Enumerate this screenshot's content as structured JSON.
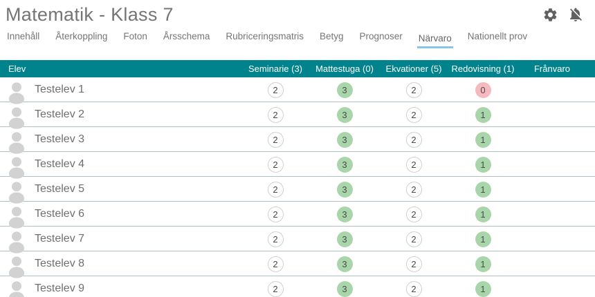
{
  "app": {
    "title": "Matematik - Klass 7"
  },
  "toolbar": {
    "icons": [
      {
        "id": "settings",
        "name": "settings-icon"
      },
      {
        "id": "notifications_off",
        "name": "notifications-off-icon"
      }
    ]
  },
  "tabs": [
    {
      "id": "innehall",
      "label": "Innehåll",
      "active": false
    },
    {
      "id": "aterkoppling",
      "label": "Återkoppling",
      "active": false
    },
    {
      "id": "foton",
      "label": "Foton",
      "active": false
    },
    {
      "id": "arsschema",
      "label": "Årsschema",
      "active": false
    },
    {
      "id": "rubriceringsmatris",
      "label": "Rubriceringsmatris",
      "active": false
    },
    {
      "id": "betyg",
      "label": "Betyg",
      "active": false
    },
    {
      "id": "prognoser",
      "label": "Prognoser",
      "active": false
    },
    {
      "id": "narvaro",
      "label": "Närvaro",
      "active": true
    },
    {
      "id": "nationellt-prov",
      "label": "Nationellt prov",
      "active": false
    }
  ],
  "table": {
    "columns": [
      {
        "id": "elev",
        "label": "Elev"
      },
      {
        "id": "seminarie",
        "label": "Seminarie (3)"
      },
      {
        "id": "mattestuga",
        "label": "Mattestuga (0)"
      },
      {
        "id": "ekvationer",
        "label": "Ekvationer (5)"
      },
      {
        "id": "redovisning",
        "label": "Redovisning (1)"
      },
      {
        "id": "franvaro",
        "label": "Frånvaro"
      }
    ],
    "rows": [
      {
        "name": "Testelev 1",
        "cells": [
          {
            "col": "seminarie",
            "value": "2",
            "variant": "outline"
          },
          {
            "col": "mattestuga",
            "value": "3",
            "variant": "green"
          },
          {
            "col": "ekvationer",
            "value": "2",
            "variant": "outline"
          },
          {
            "col": "redovisning",
            "value": "0",
            "variant": "red"
          }
        ],
        "franvaro": ""
      },
      {
        "name": "Testelev 2",
        "cells": [
          {
            "col": "seminarie",
            "value": "2",
            "variant": "outline"
          },
          {
            "col": "mattestuga",
            "value": "3",
            "variant": "green"
          },
          {
            "col": "ekvationer",
            "value": "2",
            "variant": "outline"
          },
          {
            "col": "redovisning",
            "value": "1",
            "variant": "green"
          }
        ],
        "franvaro": ""
      },
      {
        "name": "Testelev 3",
        "cells": [
          {
            "col": "seminarie",
            "value": "2",
            "variant": "outline"
          },
          {
            "col": "mattestuga",
            "value": "3",
            "variant": "green"
          },
          {
            "col": "ekvationer",
            "value": "2",
            "variant": "outline"
          },
          {
            "col": "redovisning",
            "value": "1",
            "variant": "green"
          }
        ],
        "franvaro": ""
      },
      {
        "name": "Testelev 4",
        "cells": [
          {
            "col": "seminarie",
            "value": "2",
            "variant": "outline"
          },
          {
            "col": "mattestuga",
            "value": "3",
            "variant": "green"
          },
          {
            "col": "ekvationer",
            "value": "2",
            "variant": "outline"
          },
          {
            "col": "redovisning",
            "value": "1",
            "variant": "green"
          }
        ],
        "franvaro": ""
      },
      {
        "name": "Testelev 5",
        "cells": [
          {
            "col": "seminarie",
            "value": "2",
            "variant": "outline"
          },
          {
            "col": "mattestuga",
            "value": "3",
            "variant": "green"
          },
          {
            "col": "ekvationer",
            "value": "2",
            "variant": "outline"
          },
          {
            "col": "redovisning",
            "value": "1",
            "variant": "green"
          }
        ],
        "franvaro": ""
      },
      {
        "name": "Testelev 6",
        "cells": [
          {
            "col": "seminarie",
            "value": "2",
            "variant": "outline"
          },
          {
            "col": "mattestuga",
            "value": "3",
            "variant": "green"
          },
          {
            "col": "ekvationer",
            "value": "2",
            "variant": "outline"
          },
          {
            "col": "redovisning",
            "value": "1",
            "variant": "green"
          }
        ],
        "franvaro": ""
      },
      {
        "name": "Testelev 7",
        "cells": [
          {
            "col": "seminarie",
            "value": "2",
            "variant": "outline"
          },
          {
            "col": "mattestuga",
            "value": "3",
            "variant": "green"
          },
          {
            "col": "ekvationer",
            "value": "2",
            "variant": "outline"
          },
          {
            "col": "redovisning",
            "value": "1",
            "variant": "green"
          }
        ],
        "franvaro": ""
      },
      {
        "name": "Testelev 8",
        "cells": [
          {
            "col": "seminarie",
            "value": "2",
            "variant": "outline"
          },
          {
            "col": "mattestuga",
            "value": "3",
            "variant": "green"
          },
          {
            "col": "ekvationer",
            "value": "2",
            "variant": "outline"
          },
          {
            "col": "redovisning",
            "value": "1",
            "variant": "green"
          }
        ],
        "franvaro": ""
      },
      {
        "name": "Testelev 9",
        "cells": [
          {
            "col": "seminarie",
            "value": "2",
            "variant": "outline"
          },
          {
            "col": "mattestuga",
            "value": "3",
            "variant": "green"
          },
          {
            "col": "ekvationer",
            "value": "2",
            "variant": "outline"
          },
          {
            "col": "redovisning",
            "value": "1",
            "variant": "green"
          }
        ],
        "franvaro": ""
      }
    ]
  },
  "colors": {
    "header_teal": "#00838c",
    "tab_underline": "#85c6e9",
    "badge_green": "#a9d5ab",
    "badge_red": "#f5b9be",
    "badge_outline_border": "#d0d0d0",
    "row_border": "#b0bec5",
    "text_gray": "#757575",
    "icon_gray": "#616161",
    "avatar_gray": "#d2d2d2"
  }
}
